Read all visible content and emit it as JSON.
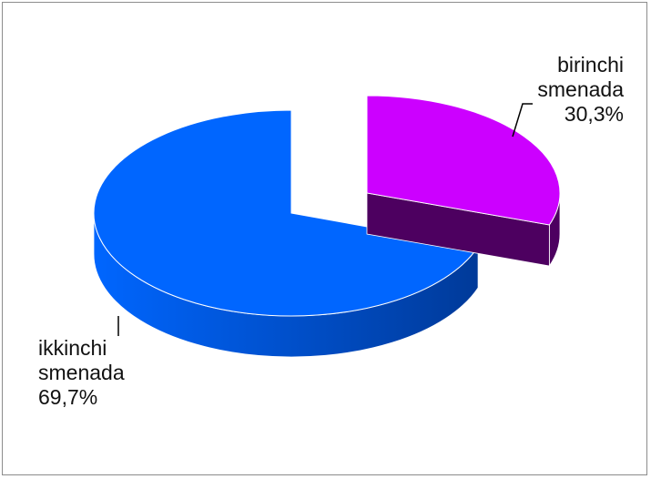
{
  "chart_data": {
    "type": "pie",
    "style": "3d-exploded",
    "slices": [
      {
        "name": "birinchi smenada",
        "value": 30.3,
        "label_line1": "birinchi",
        "label_line2": "smenada",
        "label_pct": "30,3%",
        "color": "#cc00ff",
        "side_color": "#4d0060"
      },
      {
        "name": "ikkinchi smenada",
        "value": 69.7,
        "label_line1": "ikkinchi",
        "label_line2": "smenada",
        "label_pct": "69,7%",
        "color": "#0066ff",
        "side_color": "#003a99"
      }
    ],
    "legend": "none"
  }
}
